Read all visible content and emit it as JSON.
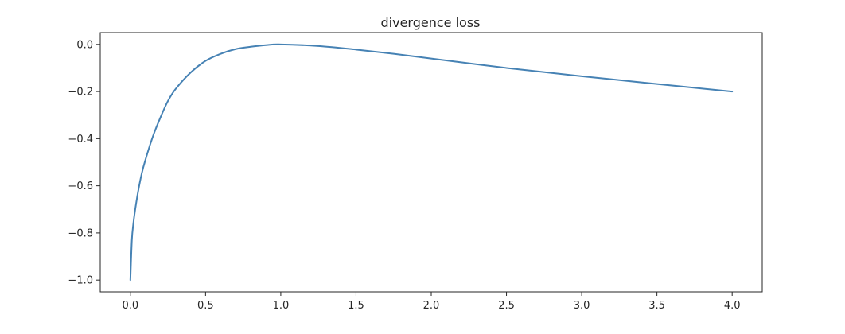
{
  "chart_data": {
    "type": "line",
    "title": "divergence loss",
    "xlabel": "",
    "ylabel": "",
    "xlim": [
      -0.2,
      4.2
    ],
    "ylim": [
      -1.05,
      0.05
    ],
    "grid": false,
    "legend": "none",
    "x_ticks": [
      {
        "value": 0.0,
        "label": "0.0"
      },
      {
        "value": 0.5,
        "label": "0.5"
      },
      {
        "value": 1.0,
        "label": "1.0"
      },
      {
        "value": 1.5,
        "label": "1.5"
      },
      {
        "value": 2.0,
        "label": "2.0"
      },
      {
        "value": 2.5,
        "label": "2.5"
      },
      {
        "value": 3.0,
        "label": "3.0"
      },
      {
        "value": 3.5,
        "label": "3.5"
      },
      {
        "value": 4.0,
        "label": "4.0"
      }
    ],
    "y_ticks": [
      {
        "value": 0.0,
        "label": "0.0"
      },
      {
        "value": -0.2,
        "label": "−0.2"
      },
      {
        "value": -0.4,
        "label": "−0.4"
      },
      {
        "value": -0.6,
        "label": "−0.6"
      },
      {
        "value": -0.8,
        "label": "−0.8"
      },
      {
        "value": -1.0,
        "label": "−1.0"
      }
    ],
    "series": [
      {
        "color": "#4682b4",
        "x": [
          0.0,
          0.01,
          0.02,
          0.03,
          0.05,
          0.075,
          0.1,
          0.15,
          0.2,
          0.25,
          0.3,
          0.4,
          0.5,
          0.6,
          0.7,
          0.8,
          0.9,
          1.0,
          1.25,
          1.5,
          1.75,
          2.0,
          2.5,
          3.0,
          3.5,
          4.0
        ],
        "y": [
          -1.0,
          -0.83,
          -0.76,
          -0.71,
          -0.63,
          -0.55,
          -0.49,
          -0.39,
          -0.31,
          -0.24,
          -0.19,
          -0.12,
          -0.07,
          -0.04,
          -0.02,
          -0.01,
          -0.003,
          0.0,
          -0.007,
          -0.022,
          -0.04,
          -0.06,
          -0.1,
          -0.135,
          -0.168,
          -0.2
        ]
      }
    ]
  }
}
